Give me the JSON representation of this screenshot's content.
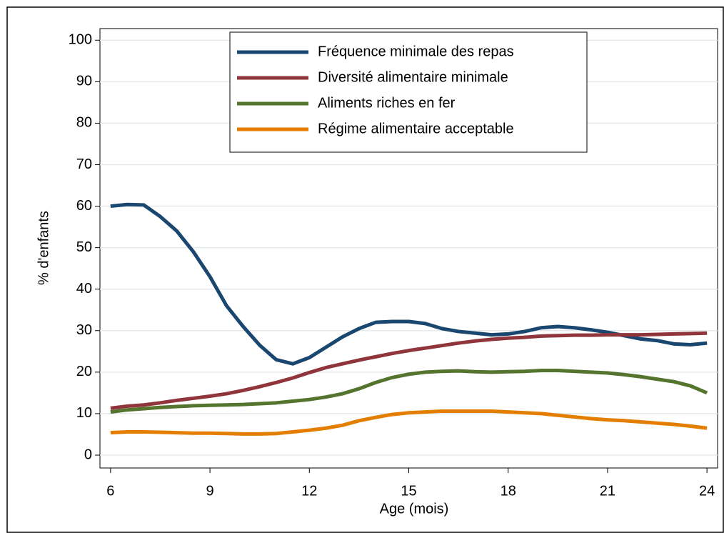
{
  "chart_data": {
    "type": "line",
    "xlabel": "Age (mois)",
    "ylabel": "% d'enfants",
    "x": [
      6,
      6.5,
      7,
      7.5,
      8,
      8.5,
      9,
      9.5,
      10,
      10.5,
      11,
      11.5,
      12,
      12.5,
      13,
      13.5,
      14,
      14.5,
      15,
      15.5,
      16,
      16.5,
      17,
      17.5,
      18,
      18.5,
      19,
      19.5,
      20,
      20.5,
      21,
      21.5,
      22,
      22.5,
      23,
      23.5,
      24
    ],
    "series": [
      {
        "name": "Fréquence minimale des repas",
        "color": "#1a476f",
        "values": [
          60,
          60.4,
          60.3,
          57.5,
          54,
          49,
          43,
          36,
          31,
          26.5,
          23,
          22,
          23.5,
          26,
          28.5,
          30.5,
          32,
          32.2,
          32.2,
          31.7,
          30.5,
          29.8,
          29.4,
          29,
          29.2,
          29.8,
          30.7,
          31,
          30.7,
          30.2,
          29.6,
          28.8,
          28,
          27.6,
          26.8,
          26.6,
          27
        ]
      },
      {
        "name": "Diversité alimentaire minimale",
        "color": "#90353b",
        "values": [
          11.3,
          11.8,
          12.1,
          12.6,
          13.2,
          13.7,
          14.2,
          14.8,
          15.6,
          16.5,
          17.5,
          18.6,
          19.9,
          21.1,
          22,
          22.9,
          23.7,
          24.5,
          25.2,
          25.8,
          26.4,
          27,
          27.5,
          27.9,
          28.2,
          28.4,
          28.7,
          28.8,
          28.9,
          28.9,
          29,
          29,
          29,
          29.1,
          29.2,
          29.3,
          29.4
        ]
      },
      {
        "name": "Aliments riches en fer",
        "color": "#55752f",
        "values": [
          10.4,
          10.9,
          11.2,
          11.5,
          11.7,
          11.9,
          12,
          12.1,
          12.2,
          12.4,
          12.6,
          13,
          13.4,
          14,
          14.8,
          16,
          17.5,
          18.7,
          19.5,
          20,
          20.2,
          20.3,
          20.1,
          20,
          20.1,
          20.2,
          20.4,
          20.4,
          20.2,
          20,
          19.8,
          19.4,
          18.9,
          18.3,
          17.7,
          16.7,
          15
        ]
      },
      {
        "name": "Régime alimentaire acceptable",
        "color": "#e37e00",
        "values": [
          5.4,
          5.6,
          5.6,
          5.5,
          5.4,
          5.3,
          5.3,
          5.2,
          5.1,
          5.1,
          5.2,
          5.6,
          6,
          6.5,
          7.2,
          8.3,
          9.1,
          9.8,
          10.2,
          10.4,
          10.6,
          10.6,
          10.6,
          10.6,
          10.4,
          10.2,
          10,
          9.6,
          9.2,
          8.8,
          8.5,
          8.3,
          8,
          7.7,
          7.4,
          7,
          6.5
        ]
      }
    ],
    "xlim": [
      5.68,
      24.32
    ],
    "xticks": [
      6,
      9,
      12,
      15,
      18,
      21,
      24
    ],
    "ylim": [
      -3.1,
      102.8
    ],
    "yticks": [
      0,
      10,
      20,
      30,
      40,
      50,
      60,
      70,
      80,
      90,
      100
    ],
    "grid": true,
    "legend": "top"
  }
}
